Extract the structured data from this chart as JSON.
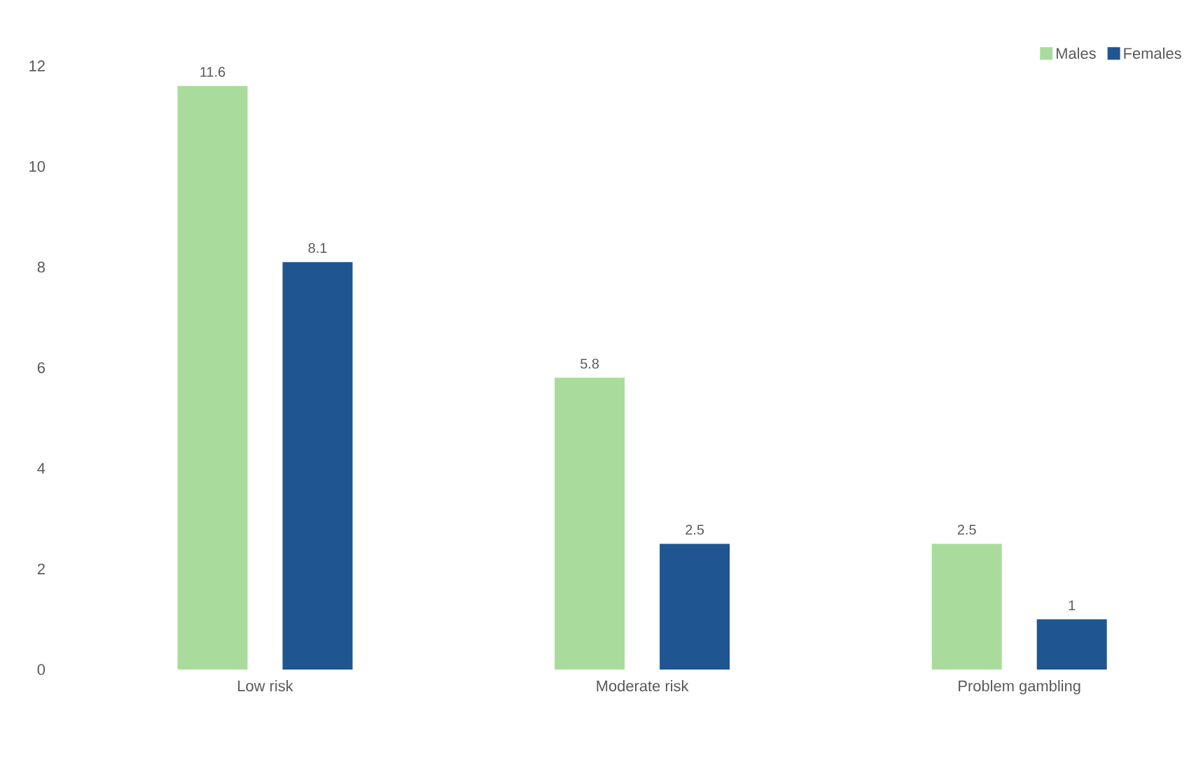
{
  "chart_data": {
    "type": "bar",
    "categories": [
      "Low risk",
      "Moderate risk",
      "Problem gambling"
    ],
    "series": [
      {
        "name": "Males",
        "color": "#a9dc9c",
        "values": [
          11.6,
          5.8,
          2.5
        ]
      },
      {
        "name": "Females",
        "color": "#1f5591",
        "values": [
          8.1,
          2.5,
          1
        ]
      }
    ],
    "ylim": [
      0,
      12
    ],
    "yticks": [
      0,
      2,
      4,
      6,
      8,
      10,
      12
    ],
    "data_labels": true,
    "legend": "top right",
    "grid": false
  }
}
